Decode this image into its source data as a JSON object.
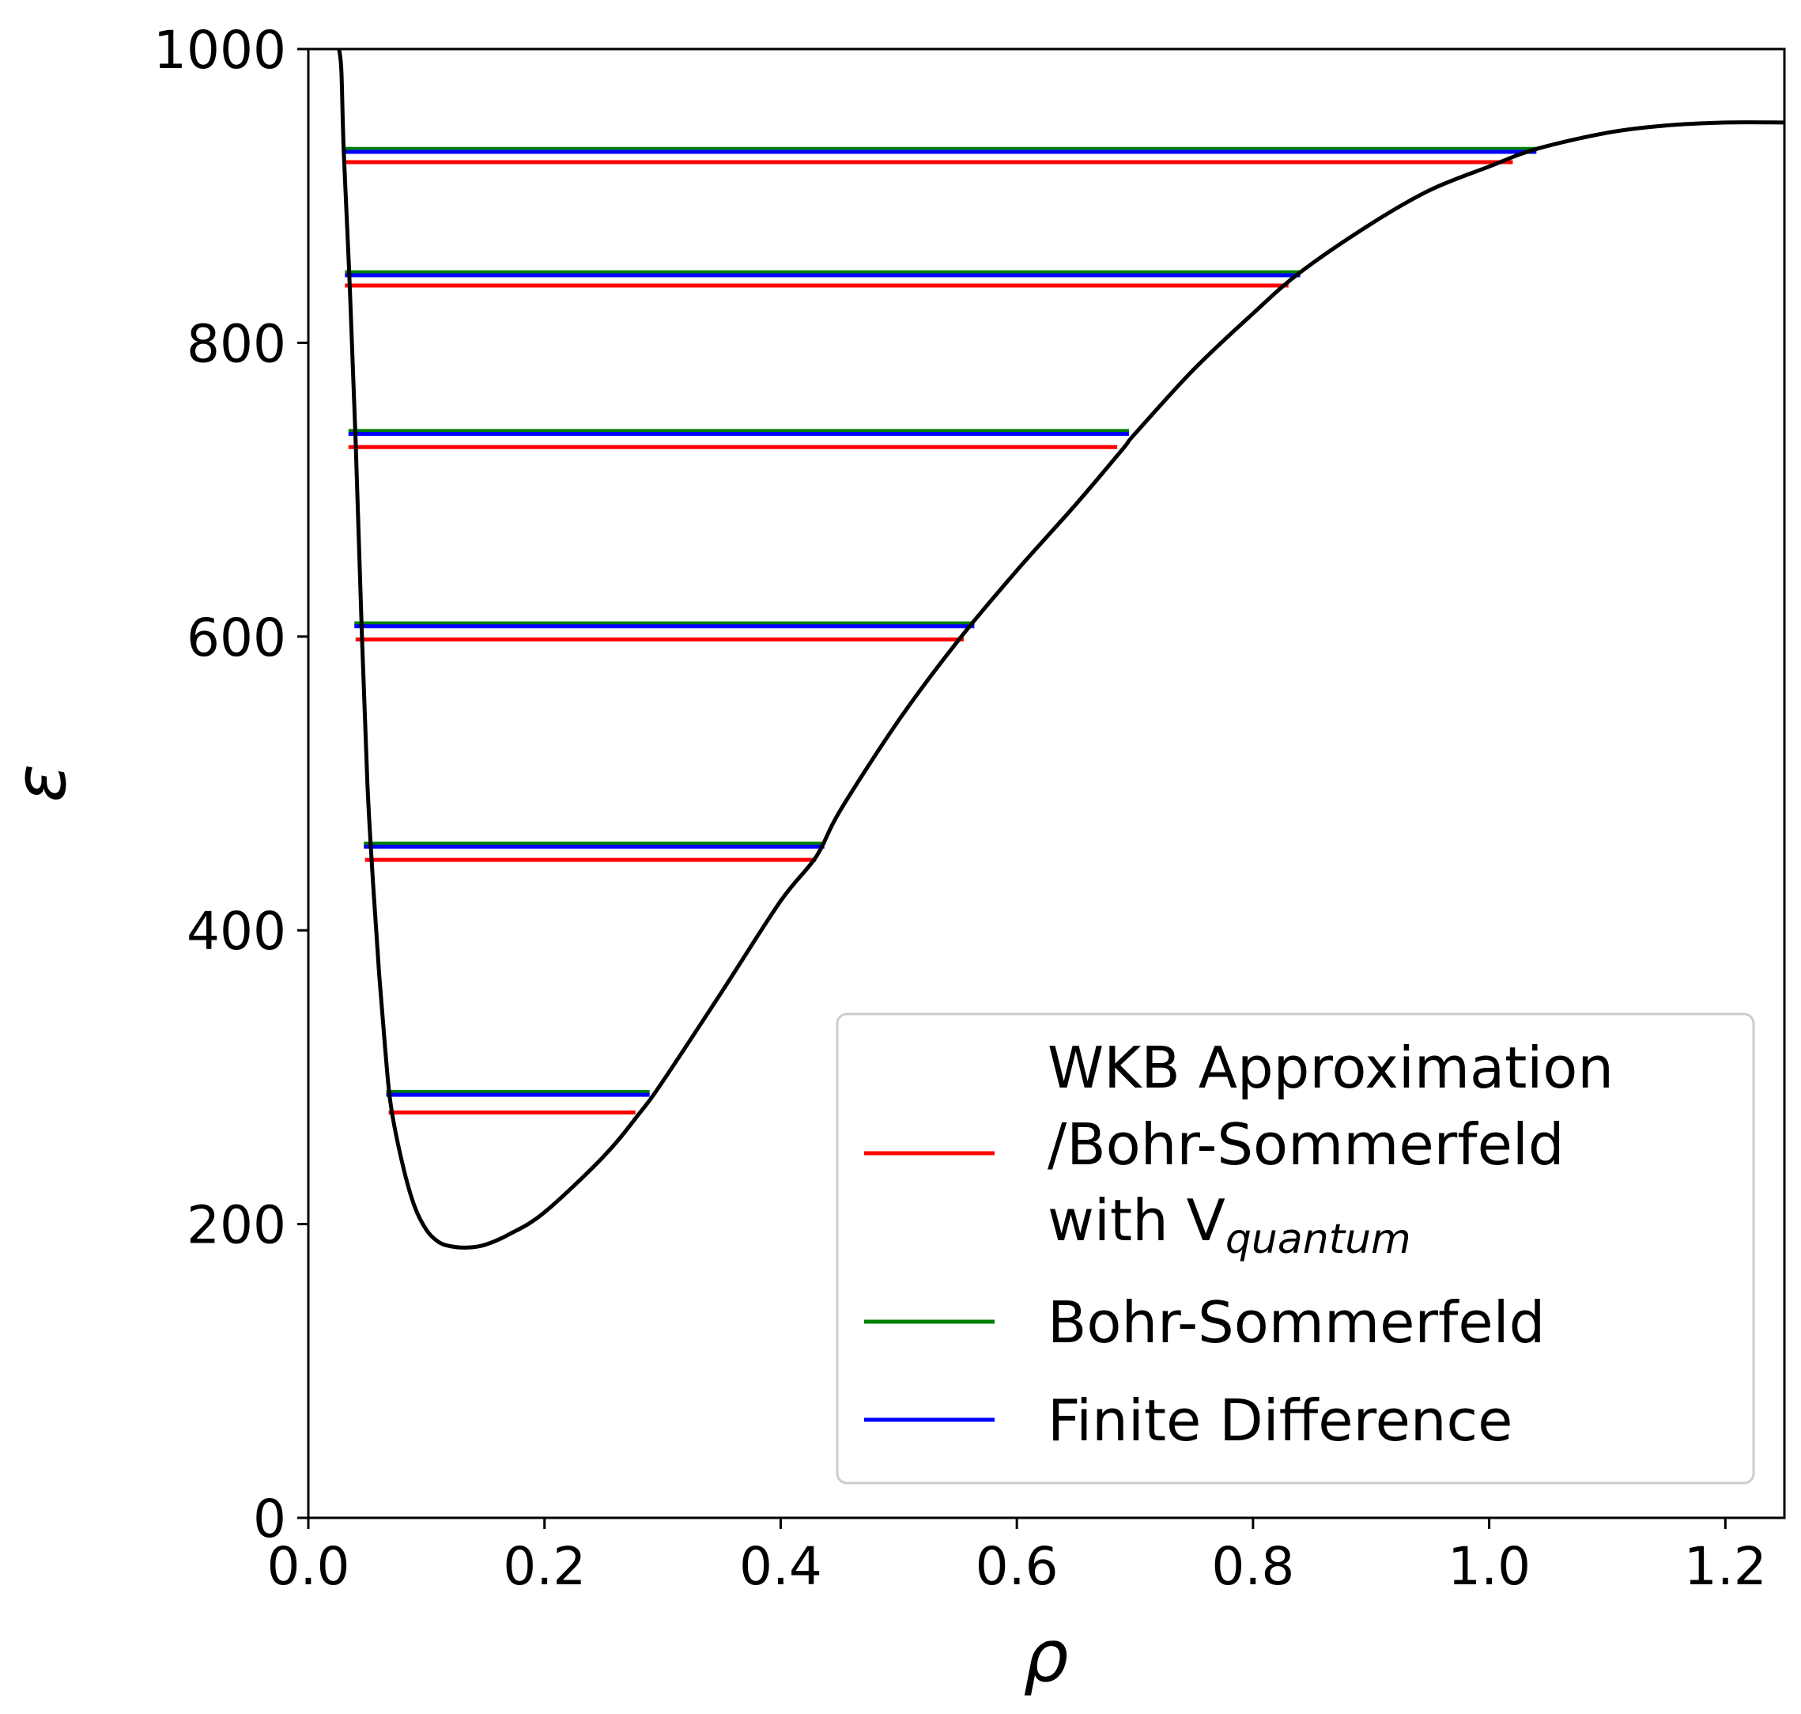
{
  "chart_data": {
    "type": "line",
    "xlabel": "ρ",
    "ylabel": "ε",
    "xlim": [
      0.0,
      1.25
    ],
    "ylim": [
      0,
      1000
    ],
    "x_ticks": [
      0.0,
      0.2,
      0.4,
      0.6,
      0.8,
      1.0,
      1.2
    ],
    "x_tick_labels": [
      "0.0",
      "0.2",
      "0.4",
      "0.6",
      "0.8",
      "1.0",
      "1.2"
    ],
    "y_ticks": [
      0,
      200,
      400,
      600,
      800,
      1000
    ],
    "y_tick_labels": [
      "0",
      "200",
      "400",
      "600",
      "800",
      "1000"
    ],
    "potential": {
      "name": "potential",
      "color": "#000000",
      "points": [
        [
          0.026,
          1000
        ],
        [
          0.028,
          985
        ],
        [
          0.03,
          930
        ],
        [
          0.035,
          840
        ],
        [
          0.04,
          735
        ],
        [
          0.045,
          610
        ],
        [
          0.05,
          500
        ],
        [
          0.055,
          430
        ],
        [
          0.06,
          370
        ],
        [
          0.065,
          320
        ],
        [
          0.07,
          280
        ],
        [
          0.08,
          240
        ],
        [
          0.09,
          212
        ],
        [
          0.1,
          196
        ],
        [
          0.11,
          188
        ],
        [
          0.12,
          185
        ],
        [
          0.135,
          184
        ],
        [
          0.15,
          186
        ],
        [
          0.17,
          193
        ],
        [
          0.2,
          208
        ],
        [
          0.25,
          246
        ],
        [
          0.28,
          275
        ],
        [
          0.3,
          297
        ],
        [
          0.35,
          358
        ],
        [
          0.4,
          420
        ],
        [
          0.43,
          450
        ],
        [
          0.45,
          481
        ],
        [
          0.5,
          543
        ],
        [
          0.55,
          597
        ],
        [
          0.6,
          645
        ],
        [
          0.65,
          690
        ],
        [
          0.69,
          728
        ],
        [
          0.7,
          738
        ],
        [
          0.75,
          782
        ],
        [
          0.8,
          820
        ],
        [
          0.84,
          848
        ],
        [
          0.9,
          881
        ],
        [
          0.95,
          904
        ],
        [
          1.0,
          920
        ],
        [
          1.04,
          932
        ],
        [
          1.1,
          943
        ],
        [
          1.15,
          948
        ],
        [
          1.2,
          950
        ],
        [
          1.25,
          950
        ]
      ]
    },
    "series": [
      {
        "name": "WKB Approximation /Bohr-Sommerfeld with V_quantum",
        "color": "#ff0000",
        "levels": [
          {
            "energy": 276,
            "x_start": 0.068,
            "x_end": 0.277
          },
          {
            "energy": 448,
            "x_start": 0.048,
            "x_end": 0.43
          },
          {
            "energy": 598,
            "x_start": 0.04,
            "x_end": 0.555
          },
          {
            "energy": 729,
            "x_start": 0.034,
            "x_end": 0.685
          },
          {
            "energy": 839,
            "x_start": 0.031,
            "x_end": 0.83
          },
          {
            "energy": 923,
            "x_start": 0.03,
            "x_end": 1.02
          }
        ]
      },
      {
        "name": "Bohr-Sommerfeld",
        "color": "#008000",
        "levels": [
          {
            "energy": 290,
            "x_start": 0.066,
            "x_end": 0.289
          },
          {
            "energy": 459,
            "x_start": 0.047,
            "x_end": 0.437
          },
          {
            "energy": 609,
            "x_start": 0.039,
            "x_end": 0.564
          },
          {
            "energy": 740,
            "x_start": 0.034,
            "x_end": 0.695
          },
          {
            "energy": 848,
            "x_start": 0.031,
            "x_end": 0.84
          },
          {
            "energy": 932,
            "x_start": 0.03,
            "x_end": 1.04
          }
        ]
      },
      {
        "name": "Finite Difference",
        "color": "#0000ff",
        "levels": [
          {
            "energy": 288,
            "x_start": 0.066,
            "x_end": 0.289
          },
          {
            "energy": 457,
            "x_start": 0.047,
            "x_end": 0.437
          },
          {
            "energy": 607,
            "x_start": 0.039,
            "x_end": 0.564
          },
          {
            "energy": 738,
            "x_start": 0.034,
            "x_end": 0.695
          },
          {
            "energy": 846,
            "x_start": 0.031,
            "x_end": 0.84
          },
          {
            "energy": 930,
            "x_start": 0.03,
            "x_end": 1.04
          }
        ]
      }
    ],
    "legend": {
      "placement": "lower-right",
      "entries": [
        {
          "lines": [
            "WKB Approximation",
            "/Bohr-Sommerfeld",
            "with V"
          ],
          "subscript": "quantum",
          "color": "#ff0000"
        },
        {
          "lines": [
            "Bohr-Sommerfeld"
          ],
          "color": "#008000"
        },
        {
          "lines": [
            "Finite Difference"
          ],
          "color": "#0000ff"
        }
      ]
    }
  }
}
